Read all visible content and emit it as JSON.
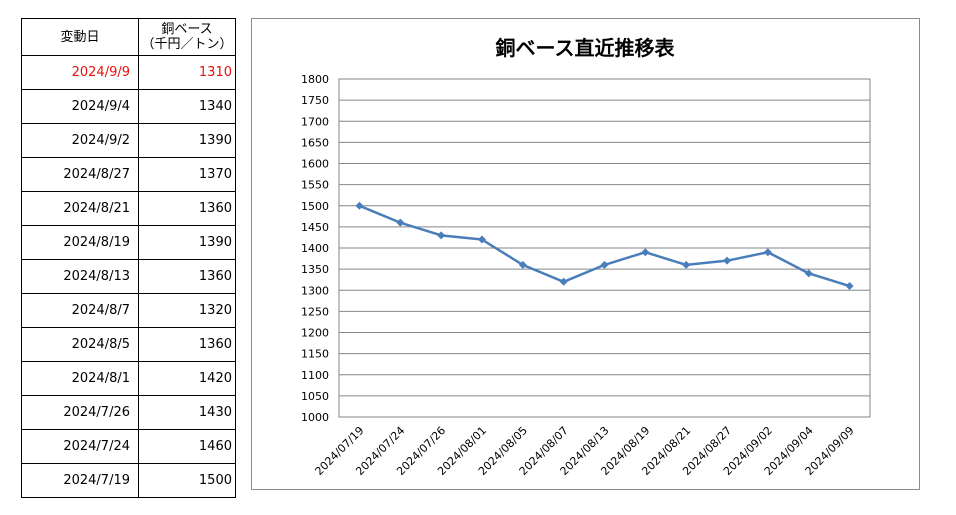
{
  "table": {
    "header_date": "変動日",
    "header_price_line1": "銅ベース",
    "header_price_line2": "（千円／トン）",
    "rows": [
      {
        "date": "2024/9/9",
        "value": "1310"
      },
      {
        "date": "2024/9/4",
        "value": "1340"
      },
      {
        "date": "2024/9/2",
        "value": "1390"
      },
      {
        "date": "2024/8/27",
        "value": "1370"
      },
      {
        "date": "2024/8/21",
        "value": "1360"
      },
      {
        "date": "2024/8/19",
        "value": "1390"
      },
      {
        "date": "2024/8/13",
        "value": "1360"
      },
      {
        "date": "2024/8/7",
        "value": "1320"
      },
      {
        "date": "2024/8/5",
        "value": "1360"
      },
      {
        "date": "2024/8/1",
        "value": "1420"
      },
      {
        "date": "2024/7/26",
        "value": "1430"
      },
      {
        "date": "2024/7/24",
        "value": "1460"
      },
      {
        "date": "2024/7/19",
        "value": "1500"
      }
    ]
  },
  "colors": {
    "latest_row": "#e8110f",
    "line": "#4a7ebb",
    "grid": "#868686"
  },
  "chart_data": {
    "type": "line",
    "title": "銅ベース直近推移表",
    "xlabel": "",
    "ylabel": "",
    "categories": [
      "2024/07/19",
      "2024/07/24",
      "2024/07/26",
      "2024/08/01",
      "2024/08/05",
      "2024/08/07",
      "2024/08/13",
      "2024/08/19",
      "2024/08/21",
      "2024/08/27",
      "2024/09/02",
      "2024/09/04",
      "2024/09/09"
    ],
    "series": [
      {
        "values": [
          1500,
          1460,
          1430,
          1420,
          1360,
          1320,
          1360,
          1390,
          1360,
          1370,
          1390,
          1340,
          1310
        ]
      }
    ],
    "ylim": [
      1000,
      1800
    ],
    "ytick_step": 50,
    "grid": true,
    "legend": "none",
    "marker": "diamond"
  }
}
